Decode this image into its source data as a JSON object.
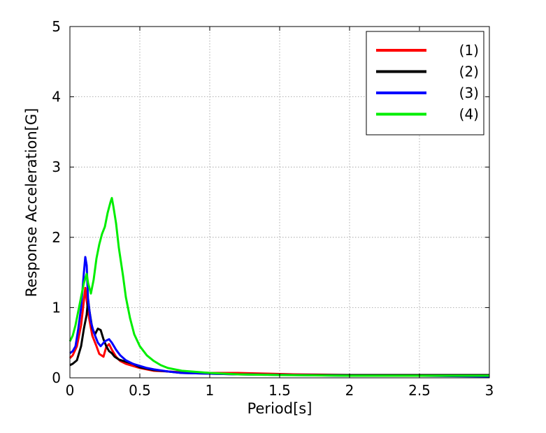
{
  "chart_data": {
    "type": "line",
    "title": "",
    "xlabel": "Period[s]",
    "ylabel": "Response Acceleration[G]",
    "xlim": [
      0,
      3
    ],
    "ylim": [
      0,
      5
    ],
    "xticks": [
      0,
      0.5,
      1,
      1.5,
      2,
      2.5,
      3
    ],
    "xtick_labels": [
      "0",
      "0.5",
      "1",
      "1.5",
      "2",
      "2.5",
      "3"
    ],
    "yticks": [
      0,
      1,
      2,
      3,
      4,
      5
    ],
    "ytick_labels": [
      "0",
      "1",
      "2",
      "3",
      "4",
      "5"
    ],
    "grid": true,
    "legend_position": "top-right",
    "series": [
      {
        "name": "(1)",
        "color": "#ff0000",
        "points": [
          [
            0,
            0.28
          ],
          [
            0.02,
            0.32
          ],
          [
            0.05,
            0.45
          ],
          [
            0.08,
            0.75
          ],
          [
            0.1,
            1.1
          ],
          [
            0.11,
            1.28
          ],
          [
            0.12,
            1.1
          ],
          [
            0.14,
            0.82
          ],
          [
            0.16,
            0.6
          ],
          [
            0.19,
            0.45
          ],
          [
            0.21,
            0.34
          ],
          [
            0.24,
            0.3
          ],
          [
            0.26,
            0.44
          ],
          [
            0.28,
            0.48
          ],
          [
            0.3,
            0.4
          ],
          [
            0.33,
            0.3
          ],
          [
            0.36,
            0.24
          ],
          [
            0.4,
            0.2
          ],
          [
            0.45,
            0.17
          ],
          [
            0.5,
            0.14
          ],
          [
            0.55,
            0.12
          ],
          [
            0.6,
            0.1
          ],
          [
            0.7,
            0.09
          ],
          [
            0.8,
            0.08
          ],
          [
            0.9,
            0.08
          ],
          [
            1.0,
            0.07
          ],
          [
            1.2,
            0.07
          ],
          [
            1.4,
            0.06
          ],
          [
            1.6,
            0.05
          ],
          [
            2.0,
            0.04
          ],
          [
            2.5,
            0.03
          ],
          [
            3.0,
            0.03
          ]
        ]
      },
      {
        "name": "(2)",
        "color": "#000000",
        "points": [
          [
            0,
            0.18
          ],
          [
            0.02,
            0.2
          ],
          [
            0.05,
            0.25
          ],
          [
            0.08,
            0.45
          ],
          [
            0.1,
            0.7
          ],
          [
            0.12,
            0.9
          ],
          [
            0.13,
            1.12
          ],
          [
            0.14,
            0.95
          ],
          [
            0.16,
            0.7
          ],
          [
            0.18,
            0.62
          ],
          [
            0.2,
            0.7
          ],
          [
            0.22,
            0.68
          ],
          [
            0.24,
            0.55
          ],
          [
            0.26,
            0.45
          ],
          [
            0.28,
            0.38
          ],
          [
            0.3,
            0.35
          ],
          [
            0.32,
            0.3
          ],
          [
            0.35,
            0.26
          ],
          [
            0.4,
            0.23
          ],
          [
            0.45,
            0.2
          ],
          [
            0.5,
            0.15
          ],
          [
            0.55,
            0.13
          ],
          [
            0.6,
            0.11
          ],
          [
            0.7,
            0.09
          ],
          [
            0.8,
            0.07
          ],
          [
            1.0,
            0.06
          ],
          [
            1.2,
            0.05
          ],
          [
            1.6,
            0.04
          ],
          [
            2.0,
            0.04
          ],
          [
            2.5,
            0.04
          ],
          [
            3.0,
            0.04
          ]
        ]
      },
      {
        "name": "(3)",
        "color": "#0000ff",
        "points": [
          [
            0,
            0.35
          ],
          [
            0.02,
            0.38
          ],
          [
            0.04,
            0.45
          ],
          [
            0.06,
            0.7
          ],
          [
            0.08,
            1.0
          ],
          [
            0.1,
            1.5
          ],
          [
            0.11,
            1.72
          ],
          [
            0.12,
            1.6
          ],
          [
            0.13,
            1.1
          ],
          [
            0.15,
            0.8
          ],
          [
            0.17,
            0.65
          ],
          [
            0.2,
            0.5
          ],
          [
            0.22,
            0.45
          ],
          [
            0.25,
            0.52
          ],
          [
            0.28,
            0.55
          ],
          [
            0.3,
            0.5
          ],
          [
            0.33,
            0.4
          ],
          [
            0.36,
            0.32
          ],
          [
            0.4,
            0.25
          ],
          [
            0.45,
            0.2
          ],
          [
            0.5,
            0.17
          ],
          [
            0.55,
            0.14
          ],
          [
            0.6,
            0.12
          ],
          [
            0.7,
            0.09
          ],
          [
            0.8,
            0.07
          ],
          [
            1.0,
            0.06
          ],
          [
            1.2,
            0.05
          ],
          [
            1.6,
            0.04
          ],
          [
            2.0,
            0.03
          ],
          [
            2.5,
            0.03
          ],
          [
            3.0,
            0.02
          ]
        ]
      },
      {
        "name": "(4)",
        "color": "#00ee00",
        "points": [
          [
            0,
            0.52
          ],
          [
            0.02,
            0.6
          ],
          [
            0.04,
            0.75
          ],
          [
            0.06,
            0.95
          ],
          [
            0.08,
            1.15
          ],
          [
            0.1,
            1.35
          ],
          [
            0.12,
            1.48
          ],
          [
            0.13,
            1.35
          ],
          [
            0.15,
            1.2
          ],
          [
            0.17,
            1.4
          ],
          [
            0.19,
            1.7
          ],
          [
            0.21,
            1.9
          ],
          [
            0.23,
            2.05
          ],
          [
            0.25,
            2.15
          ],
          [
            0.27,
            2.35
          ],
          [
            0.29,
            2.5
          ],
          [
            0.3,
            2.56
          ],
          [
            0.31,
            2.45
          ],
          [
            0.33,
            2.2
          ],
          [
            0.35,
            1.85
          ],
          [
            0.38,
            1.45
          ],
          [
            0.4,
            1.15
          ],
          [
            0.43,
            0.85
          ],
          [
            0.46,
            0.62
          ],
          [
            0.5,
            0.45
          ],
          [
            0.55,
            0.32
          ],
          [
            0.6,
            0.24
          ],
          [
            0.65,
            0.18
          ],
          [
            0.7,
            0.14
          ],
          [
            0.8,
            0.1
          ],
          [
            1.0,
            0.07
          ],
          [
            1.2,
            0.05
          ],
          [
            1.5,
            0.04
          ],
          [
            2.0,
            0.03
          ],
          [
            2.5,
            0.03
          ],
          [
            3.0,
            0.03
          ]
        ]
      }
    ]
  }
}
